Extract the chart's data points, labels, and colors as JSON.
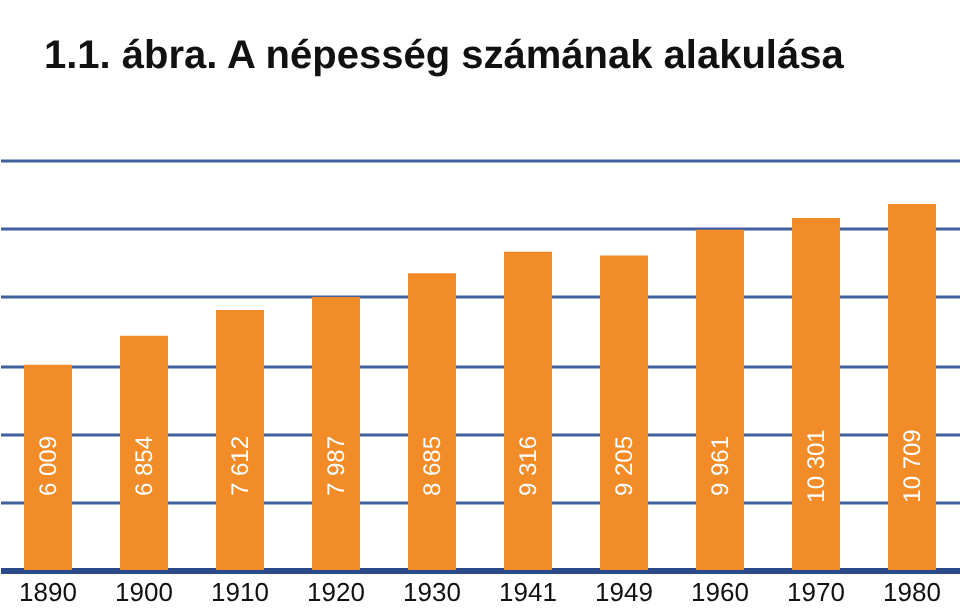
{
  "chart_data": {
    "type": "bar",
    "title": "1.1. ábra. A népesség számának alakulása",
    "categories": [
      "1890",
      "1900",
      "1910",
      "1920",
      "1930",
      "1941",
      "1949",
      "1960",
      "1970",
      "1980"
    ],
    "values": [
      6009,
      6854,
      7612,
      7987,
      8685,
      9316,
      9205,
      9961,
      10301,
      10709
    ],
    "value_labels": [
      "6 009",
      "6 854",
      "7 612",
      "7 987",
      "8 685",
      "9 316",
      "9 205",
      "9 961",
      "10 301",
      "10 709"
    ],
    "color": "#f28c28",
    "ylim": [
      0,
      12000
    ],
    "yticks": [
      {
        "value": 0,
        "label": null
      },
      {
        "value": 2000,
        "label": null
      },
      {
        "value": 4000,
        "label": null
      },
      {
        "value": 6000,
        "label": null
      },
      {
        "value": 8000,
        "label": null
      },
      {
        "value": 10000,
        "label": null
      },
      {
        "value": 12000,
        "label": null
      }
    ],
    "grid": true,
    "tick_labels": "x"
  }
}
